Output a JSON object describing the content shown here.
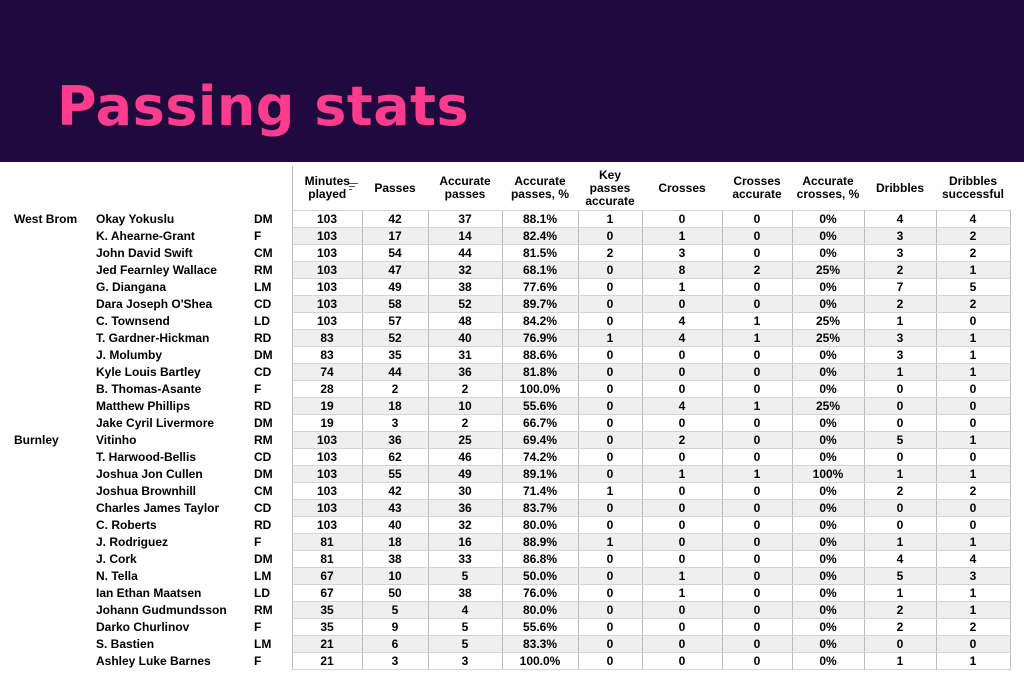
{
  "header": {
    "title": "Passing stats"
  },
  "columns": {
    "minutes": "Minutes played",
    "passes": "Passes",
    "accurate_passes": "Accurate passes",
    "accurate_passes_pct": "Accurate passes, %",
    "key_passes": "Key passes accurate",
    "crosses": "Crosses",
    "crosses_accurate": "Crosses accurate",
    "accurate_crosses_pct": "Accurate crosses, %",
    "dribbles": "Dribbles",
    "dribbles_successful": "Dribbles successful",
    "sort_icon": "sort-icon"
  },
  "rows": [
    {
      "team": "West Brom",
      "name": "Okay Yokuslu",
      "pos": "DM",
      "min": "103",
      "passes": "42",
      "acc": "37",
      "accp": "88.1%",
      "key": "1",
      "cross": "0",
      "crossa": "0",
      "crossp": "0%",
      "drib": "4",
      "dribs": "4"
    },
    {
      "team": "",
      "name": "K. Ahearne-Grant",
      "pos": "F",
      "min": "103",
      "passes": "17",
      "acc": "14",
      "accp": "82.4%",
      "key": "0",
      "cross": "1",
      "crossa": "0",
      "crossp": "0%",
      "drib": "3",
      "dribs": "2"
    },
    {
      "team": "",
      "name": "John David Swift",
      "pos": "CM",
      "min": "103",
      "passes": "54",
      "acc": "44",
      "accp": "81.5%",
      "key": "2",
      "cross": "3",
      "crossa": "0",
      "crossp": "0%",
      "drib": "3",
      "dribs": "2"
    },
    {
      "team": "",
      "name": "Jed Fearnley Wallace",
      "pos": "RM",
      "min": "103",
      "passes": "47",
      "acc": "32",
      "accp": "68.1%",
      "key": "0",
      "cross": "8",
      "crossa": "2",
      "crossp": "25%",
      "drib": "2",
      "dribs": "1"
    },
    {
      "team": "",
      "name": "G. Diangana",
      "pos": "LM",
      "min": "103",
      "passes": "49",
      "acc": "38",
      "accp": "77.6%",
      "key": "0",
      "cross": "1",
      "crossa": "0",
      "crossp": "0%",
      "drib": "7",
      "dribs": "5"
    },
    {
      "team": "",
      "name": "Dara Joseph O'Shea",
      "pos": "CD",
      "min": "103",
      "passes": "58",
      "acc": "52",
      "accp": "89.7%",
      "key": "0",
      "cross": "0",
      "crossa": "0",
      "crossp": "0%",
      "drib": "2",
      "dribs": "2"
    },
    {
      "team": "",
      "name": "C. Townsend",
      "pos": "LD",
      "min": "103",
      "passes": "57",
      "acc": "48",
      "accp": "84.2%",
      "key": "0",
      "cross": "4",
      "crossa": "1",
      "crossp": "25%",
      "drib": "1",
      "dribs": "0"
    },
    {
      "team": "",
      "name": "T. Gardner-Hickman",
      "pos": "RD",
      "min": "83",
      "passes": "52",
      "acc": "40",
      "accp": "76.9%",
      "key": "1",
      "cross": "4",
      "crossa": "1",
      "crossp": "25%",
      "drib": "3",
      "dribs": "1"
    },
    {
      "team": "",
      "name": "J. Molumby",
      "pos": "DM",
      "min": "83",
      "passes": "35",
      "acc": "31",
      "accp": "88.6%",
      "key": "0",
      "cross": "0",
      "crossa": "0",
      "crossp": "0%",
      "drib": "3",
      "dribs": "1"
    },
    {
      "team": "",
      "name": "Kyle Louis Bartley",
      "pos": "CD",
      "min": "74",
      "passes": "44",
      "acc": "36",
      "accp": "81.8%",
      "key": "0",
      "cross": "0",
      "crossa": "0",
      "crossp": "0%",
      "drib": "1",
      "dribs": "1"
    },
    {
      "team": "",
      "name": "B. Thomas-Asante",
      "pos": "F",
      "min": "28",
      "passes": "2",
      "acc": "2",
      "accp": "100.0%",
      "key": "0",
      "cross": "0",
      "crossa": "0",
      "crossp": "0%",
      "drib": "0",
      "dribs": "0"
    },
    {
      "team": "",
      "name": "Matthew Phillips",
      "pos": "RD",
      "min": "19",
      "passes": "18",
      "acc": "10",
      "accp": "55.6%",
      "key": "0",
      "cross": "4",
      "crossa": "1",
      "crossp": "25%",
      "drib": "0",
      "dribs": "0"
    },
    {
      "team": "",
      "name": "Jake Cyril Livermore",
      "pos": "DM",
      "min": "19",
      "passes": "3",
      "acc": "2",
      "accp": "66.7%",
      "key": "0",
      "cross": "0",
      "crossa": "0",
      "crossp": "0%",
      "drib": "0",
      "dribs": "0"
    },
    {
      "team": "Burnley",
      "name": "Vitinho",
      "pos": "RM",
      "min": "103",
      "passes": "36",
      "acc": "25",
      "accp": "69.4%",
      "key": "0",
      "cross": "2",
      "crossa": "0",
      "crossp": "0%",
      "drib": "5",
      "dribs": "1"
    },
    {
      "team": "",
      "name": "T. Harwood-Bellis",
      "pos": "CD",
      "min": "103",
      "passes": "62",
      "acc": "46",
      "accp": "74.2%",
      "key": "0",
      "cross": "0",
      "crossa": "0",
      "crossp": "0%",
      "drib": "0",
      "dribs": "0"
    },
    {
      "team": "",
      "name": "Joshua Jon Cullen",
      "pos": "DM",
      "min": "103",
      "passes": "55",
      "acc": "49",
      "accp": "89.1%",
      "key": "0",
      "cross": "1",
      "crossa": "1",
      "crossp": "100%",
      "drib": "1",
      "dribs": "1"
    },
    {
      "team": "",
      "name": "Joshua Brownhill",
      "pos": "CM",
      "min": "103",
      "passes": "42",
      "acc": "30",
      "accp": "71.4%",
      "key": "1",
      "cross": "0",
      "crossa": "0",
      "crossp": "0%",
      "drib": "2",
      "dribs": "2"
    },
    {
      "team": "",
      "name": "Charles James Taylor",
      "pos": "CD",
      "min": "103",
      "passes": "43",
      "acc": "36",
      "accp": "83.7%",
      "key": "0",
      "cross": "0",
      "crossa": "0",
      "crossp": "0%",
      "drib": "0",
      "dribs": "0"
    },
    {
      "team": "",
      "name": "C. Roberts",
      "pos": "RD",
      "min": "103",
      "passes": "40",
      "acc": "32",
      "accp": "80.0%",
      "key": "0",
      "cross": "0",
      "crossa": "0",
      "crossp": "0%",
      "drib": "0",
      "dribs": "0"
    },
    {
      "team": "",
      "name": "J. Rodriguez",
      "pos": "F",
      "min": "81",
      "passes": "18",
      "acc": "16",
      "accp": "88.9%",
      "key": "1",
      "cross": "0",
      "crossa": "0",
      "crossp": "0%",
      "drib": "1",
      "dribs": "1"
    },
    {
      "team": "",
      "name": "J. Cork",
      "pos": "DM",
      "min": "81",
      "passes": "38",
      "acc": "33",
      "accp": "86.8%",
      "key": "0",
      "cross": "0",
      "crossa": "0",
      "crossp": "0%",
      "drib": "4",
      "dribs": "4"
    },
    {
      "team": "",
      "name": "N. Tella",
      "pos": "LM",
      "min": "67",
      "passes": "10",
      "acc": "5",
      "accp": "50.0%",
      "key": "0",
      "cross": "1",
      "crossa": "0",
      "crossp": "0%",
      "drib": "5",
      "dribs": "3"
    },
    {
      "team": "",
      "name": "Ian Ethan Maatsen",
      "pos": "LD",
      "min": "67",
      "passes": "50",
      "acc": "38",
      "accp": "76.0%",
      "key": "0",
      "cross": "1",
      "crossa": "0",
      "crossp": "0%",
      "drib": "1",
      "dribs": "1"
    },
    {
      "team": "",
      "name": "Johann Gudmundsson",
      "pos": "RM",
      "min": "35",
      "passes": "5",
      "acc": "4",
      "accp": "80.0%",
      "key": "0",
      "cross": "0",
      "crossa": "0",
      "crossp": "0%",
      "drib": "2",
      "dribs": "1"
    },
    {
      "team": "",
      "name": "Darko Churlinov",
      "pos": "F",
      "min": "35",
      "passes": "9",
      "acc": "5",
      "accp": "55.6%",
      "key": "0",
      "cross": "0",
      "crossa": "0",
      "crossp": "0%",
      "drib": "2",
      "dribs": "2"
    },
    {
      "team": "",
      "name": "S. Bastien",
      "pos": "LM",
      "min": "21",
      "passes": "6",
      "acc": "5",
      "accp": "83.3%",
      "key": "0",
      "cross": "0",
      "crossa": "0",
      "crossp": "0%",
      "drib": "0",
      "dribs": "0"
    },
    {
      "team": "",
      "name": "Ashley Luke Barnes",
      "pos": "F",
      "min": "21",
      "passes": "3",
      "acc": "3",
      "accp": "100.0%",
      "key": "0",
      "cross": "0",
      "crossa": "0",
      "crossp": "0%",
      "drib": "1",
      "dribs": "1"
    }
  ]
}
